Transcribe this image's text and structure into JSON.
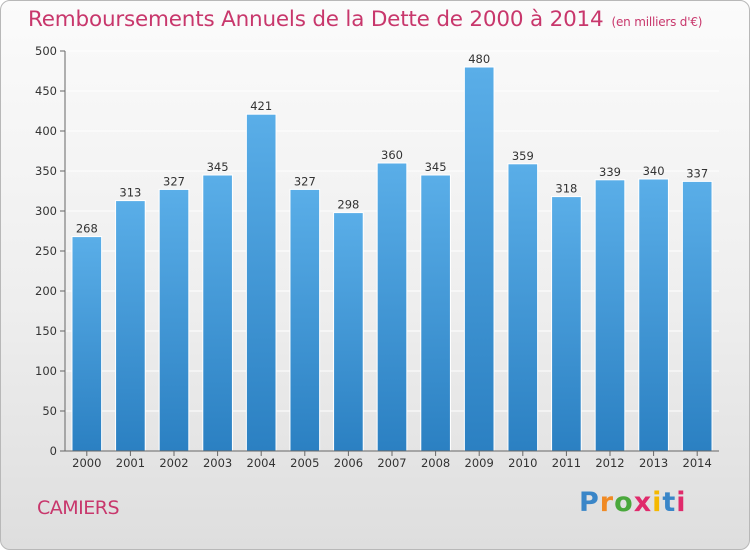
{
  "title": "Remboursements Annuels de la Dette de 2000 à 2014",
  "unit": "(en milliers d'€)",
  "commune": "CAMIERS",
  "brand": {
    "text": "Proxiti",
    "letter_colors": [
      "#3a86c8",
      "#f08a24",
      "#4aa83c",
      "#e02a6b",
      "#f5b800",
      "#3a86c8",
      "#e02a6b"
    ]
  },
  "colors": {
    "title": "#c8376c",
    "bar_top": "#5aaee8",
    "bar_bottom": "#2b80c2",
    "axis": "#666666",
    "grid": "#ffffff"
  },
  "chart_data": {
    "type": "bar",
    "title": "Remboursements Annuels de la Dette de 2000 à 2014",
    "categories": [
      "2000",
      "2001",
      "2002",
      "2003",
      "2004",
      "2005",
      "2006",
      "2007",
      "2008",
      "2009",
      "2010",
      "2011",
      "2012",
      "2013",
      "2014"
    ],
    "values": [
      268,
      313,
      327,
      345,
      421,
      327,
      298,
      360,
      345,
      480,
      359,
      318,
      339,
      340,
      337
    ],
    "data_labels": [
      "268",
      "313",
      "327",
      "345",
      "421",
      "327",
      "298",
      "360",
      "345",
      "480",
      "359",
      "318",
      "339",
      "340",
      "337"
    ],
    "ylim": [
      0,
      500
    ],
    "yticks": [
      0,
      50,
      100,
      150,
      200,
      250,
      300,
      350,
      400,
      450,
      500
    ],
    "grid": true,
    "legend": "none"
  }
}
